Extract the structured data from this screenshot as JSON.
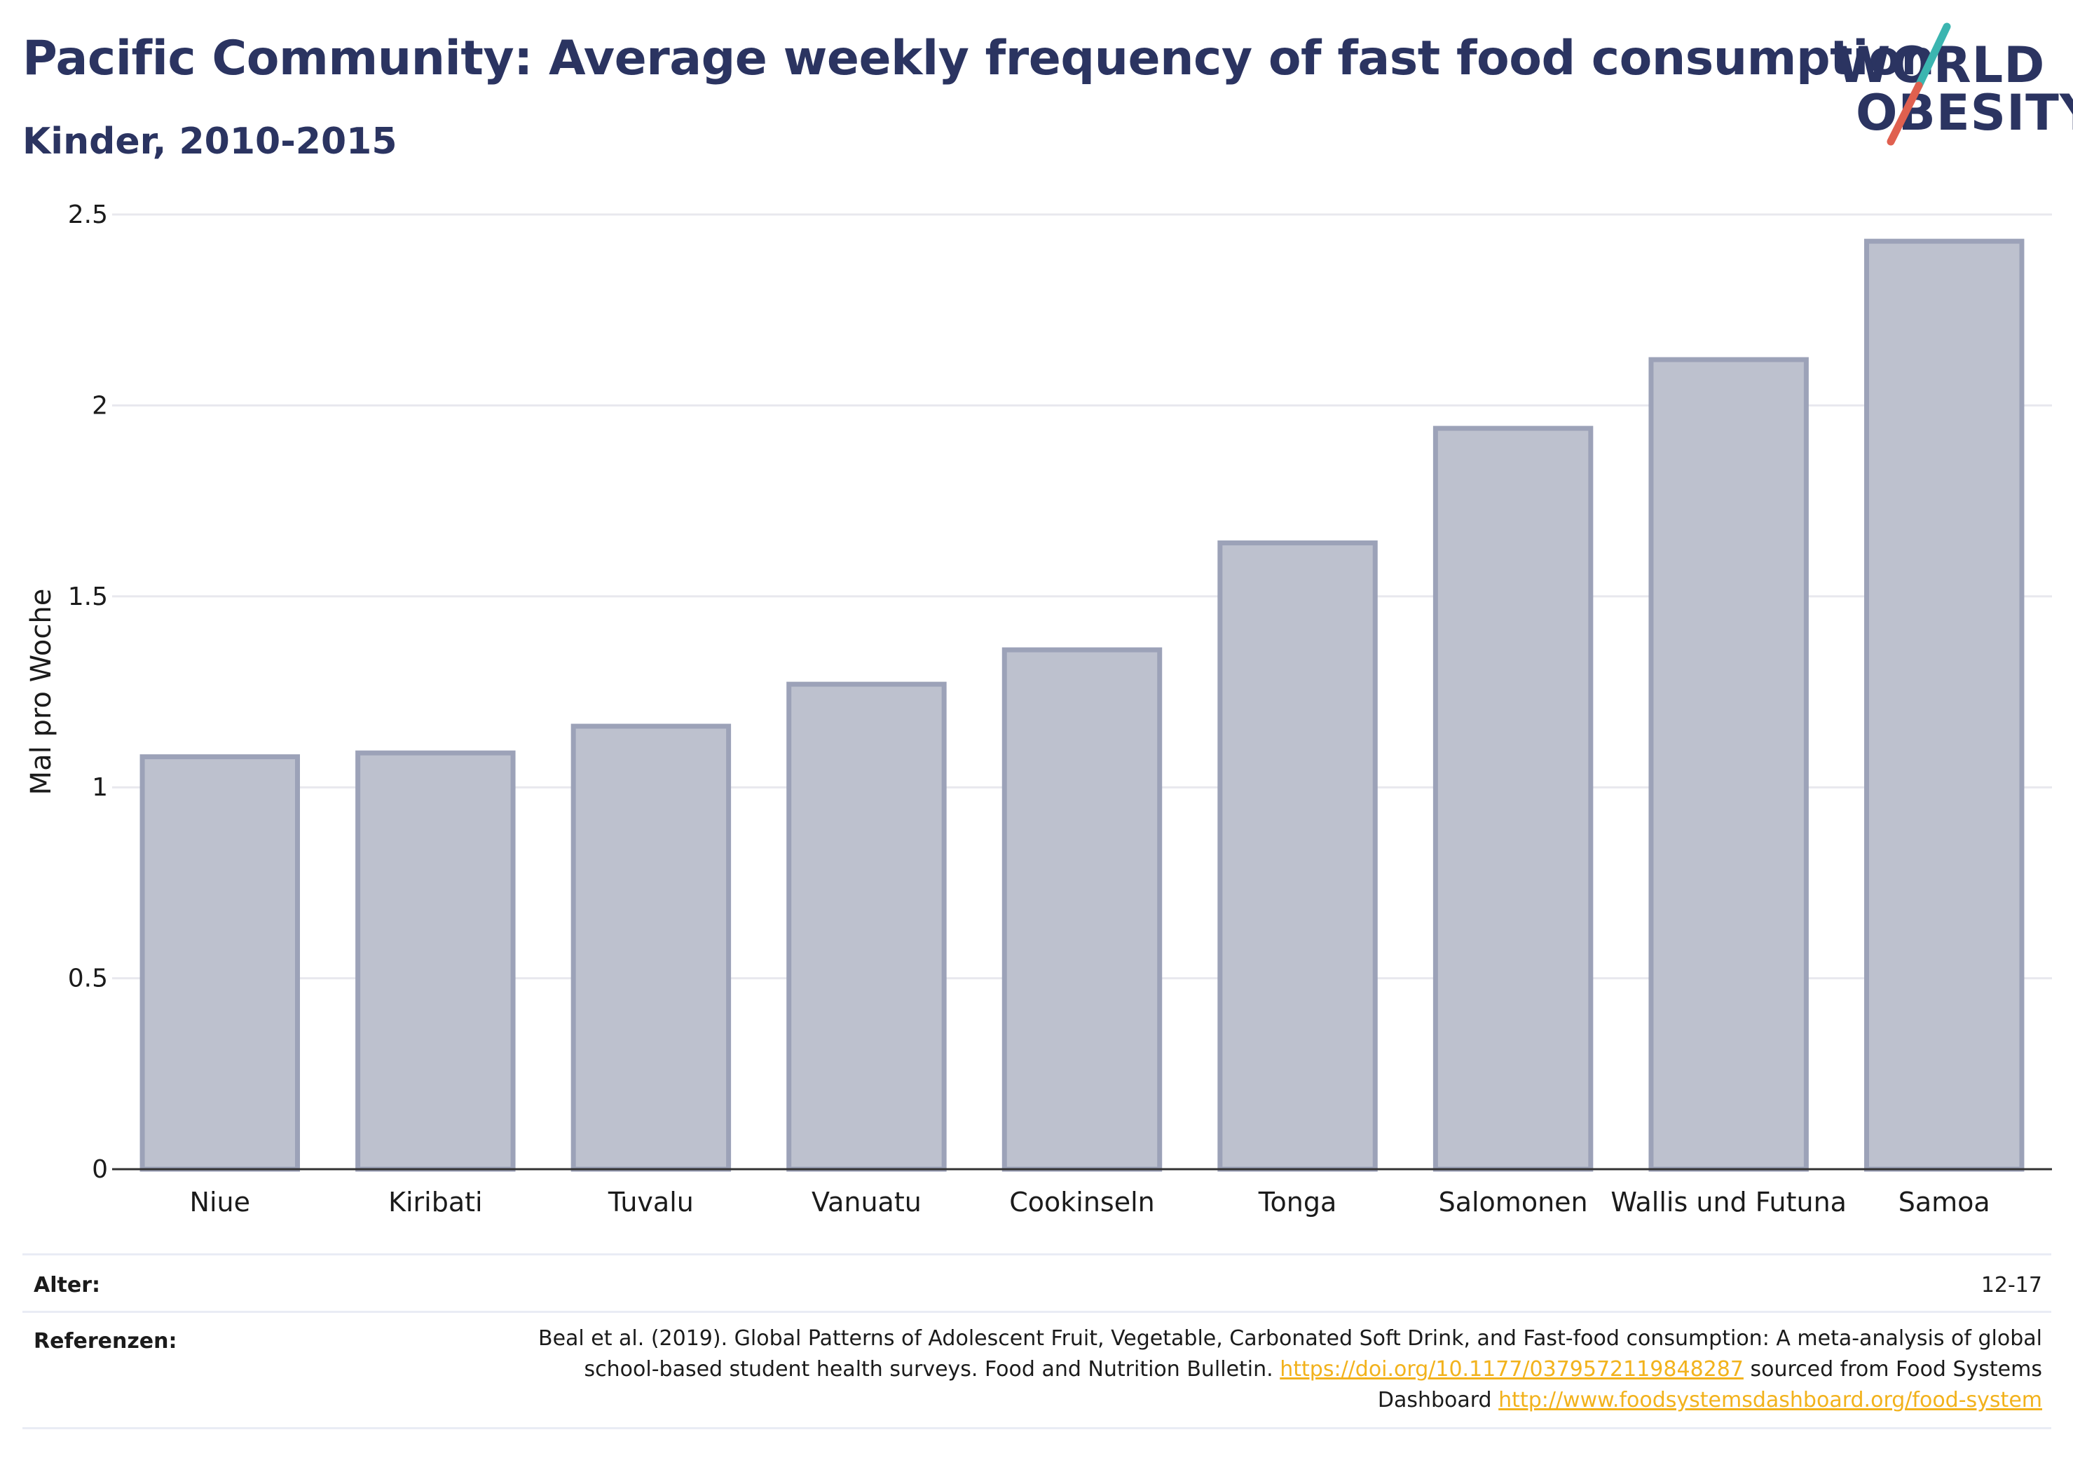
{
  "header": {
    "title": "Pacific Community: Average weekly frequency of fast food consumption",
    "subtitle": "Kinder, 2010-2015"
  },
  "logo": {
    "line1": "WORLD",
    "line2": "OBESITY",
    "accent_teal": "#3bb5b0",
    "accent_red": "#e0604f",
    "text_color": "#2b3461"
  },
  "chart_data": {
    "type": "bar",
    "categories": [
      "Niue",
      "Kiribati",
      "Tuvalu",
      "Vanuatu",
      "Cookinseln",
      "Tonga",
      "Salomonen",
      "Wallis und Futuna",
      "Samoa"
    ],
    "values": [
      1.08,
      1.09,
      1.16,
      1.27,
      1.36,
      1.64,
      1.94,
      2.12,
      2.43
    ],
    "ylabel": "Mal pro Woche",
    "xlabel": "",
    "ylim": [
      0,
      2.5
    ],
    "yticks": [
      0,
      0.5,
      1,
      1.5,
      2,
      2.5
    ],
    "ytick_labels": [
      "0",
      "0.5",
      "1",
      "1.5",
      "2",
      "2.5"
    ],
    "grid": true,
    "bar_fill": "#bdc1ce",
    "bar_stroke": "#9ca2b8"
  },
  "info": {
    "age_label": "Alter:",
    "age_value": "12-17",
    "refs_label": "Referenzen:",
    "refs_text1": "Beal et al. (2019). Global Patterns of Adolescent Fruit, Vegetable, Carbonated Soft Drink, and Fast-food consumption: A meta-analysis of global school-based student health surveys. Food and Nutrition Bulletin.",
    "refs_link1": "https://doi.org/10.1177/0379572119848287",
    "refs_text2": "sourced from Food Systems Dashboard",
    "refs_link2": "http://www.foodsystemsdashboard.org/food-system"
  }
}
